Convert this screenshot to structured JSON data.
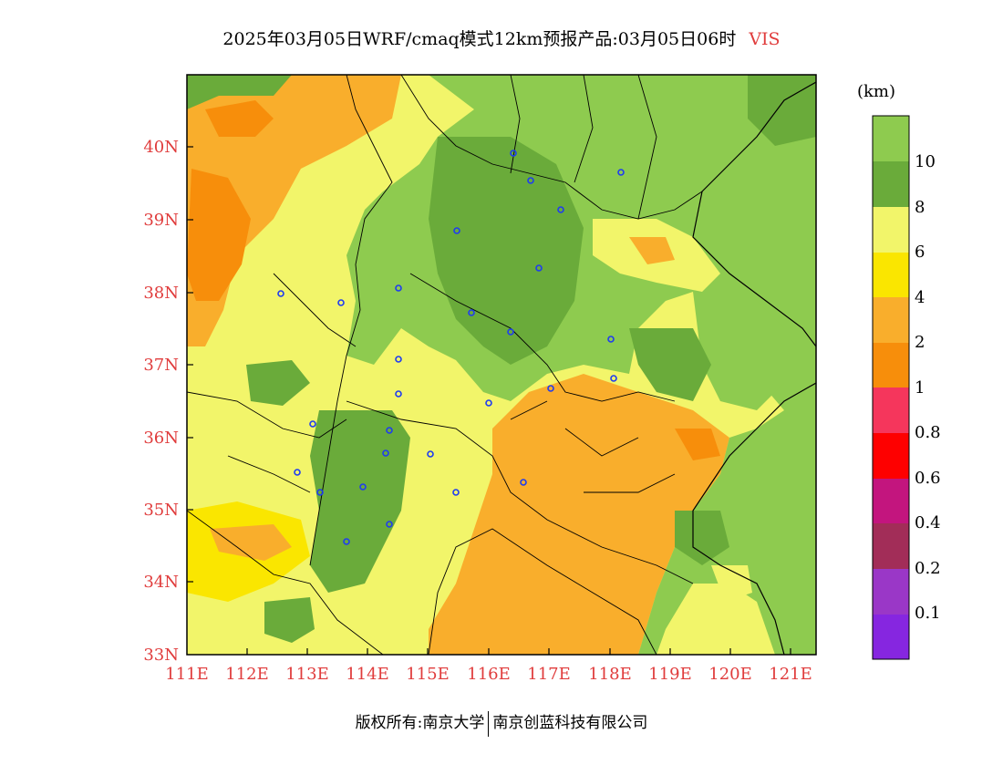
{
  "title": {
    "main": "2025年03月05日WRF/cmaq模式12km预报产品:03月05日06时",
    "variable": "VIS"
  },
  "unit_label": "(km)",
  "lat_labels": [
    "40N",
    "39N",
    "38N",
    "37N",
    "36N",
    "35N",
    "34N",
    "33N"
  ],
  "lon_labels": [
    "111E",
    "112E",
    "113E",
    "114E",
    "115E",
    "116E",
    "117E",
    "118E",
    "119E",
    "120E",
    "121E"
  ],
  "colorbar": {
    "labels": [
      "10",
      "8",
      "6",
      "4",
      "2",
      "1",
      "0.8",
      "0.6",
      "0.4",
      "0.2",
      "0.1"
    ],
    "colors": [
      "#8ecb4f",
      "#6aab3a",
      "#f2f56a",
      "#fae600",
      "#f9ae2c",
      "#f78e0b",
      "#f5365c",
      "#fe0000",
      "#c3157e",
      "#a22d58",
      "#9a37c7",
      "#8626e0"
    ]
  },
  "map_colors": {
    "vis_gt10": "#8ecb4f",
    "vis_8_10": "#6aab3a",
    "vis_6_8": "#f2f56a",
    "vis_4_6": "#fae600",
    "vis_2_4": "#f9ae2c",
    "vis_1_2": "#f78e0b"
  },
  "footer": {
    "left": "版权所有:南京大学",
    "right": "南京创蓝科技有限公司"
  }
}
